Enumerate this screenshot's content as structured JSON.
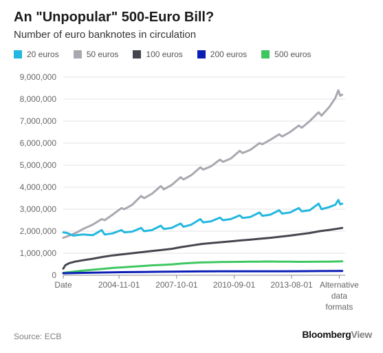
{
  "header": {
    "title": "An \"Unpopular\" 500-Euro Bill?",
    "subtitle": "Number of euro banknotes in circulation"
  },
  "footer": {
    "source": "Source: ECB",
    "brand_main": "Bloomberg",
    "brand_suffix": "View"
  },
  "chart_data": {
    "type": "line",
    "title": "An \"Unpopular\" 500-Euro Bill?",
    "subtitle": "Number of euro banknotes in circulation",
    "xlabel": "",
    "ylabel": "",
    "x_tick_labels": [
      "Date",
      "2004-11-01",
      "2007-10-01",
      "2010-09-01",
      "2013-08-01",
      "Alternative data formats"
    ],
    "x_tick_years": [
      2002.0,
      2004.83,
      2007.75,
      2010.67,
      2013.58,
      2016.0
    ],
    "xlim": [
      2002.0,
      2016.3
    ],
    "ylim": [
      0,
      9000000
    ],
    "y_ticks": [
      0,
      1000000,
      2000000,
      3000000,
      4000000,
      5000000,
      6000000,
      7000000,
      8000000,
      9000000
    ],
    "y_tick_labels": [
      "0",
      "1,000,000",
      "2,000,000",
      "3,000,000",
      "4,000,000",
      "5,000,000",
      "6,000,000",
      "7,000,000",
      "8,000,000",
      "9,000,000"
    ],
    "grid": true,
    "legend_position": "top",
    "series": [
      {
        "name": "20 euros",
        "color": "#22b7e0",
        "points": [
          [
            2002.0,
            1950000
          ],
          [
            2002.2,
            1920000
          ],
          [
            2002.5,
            1800000
          ],
          [
            2003.0,
            1850000
          ],
          [
            2003.5,
            1820000
          ],
          [
            2003.95,
            2050000
          ],
          [
            2004.1,
            1850000
          ],
          [
            2004.5,
            1900000
          ],
          [
            2004.95,
            2050000
          ],
          [
            2005.1,
            1950000
          ],
          [
            2005.5,
            1980000
          ],
          [
            2005.95,
            2150000
          ],
          [
            2006.1,
            2000000
          ],
          [
            2006.5,
            2050000
          ],
          [
            2006.95,
            2250000
          ],
          [
            2007.1,
            2100000
          ],
          [
            2007.5,
            2150000
          ],
          [
            2007.95,
            2350000
          ],
          [
            2008.1,
            2200000
          ],
          [
            2008.5,
            2300000
          ],
          [
            2008.95,
            2550000
          ],
          [
            2009.1,
            2400000
          ],
          [
            2009.5,
            2450000
          ],
          [
            2009.95,
            2620000
          ],
          [
            2010.1,
            2500000
          ],
          [
            2010.5,
            2550000
          ],
          [
            2010.95,
            2720000
          ],
          [
            2011.1,
            2600000
          ],
          [
            2011.5,
            2650000
          ],
          [
            2011.95,
            2850000
          ],
          [
            2012.1,
            2700000
          ],
          [
            2012.5,
            2750000
          ],
          [
            2012.95,
            2950000
          ],
          [
            2013.1,
            2800000
          ],
          [
            2013.5,
            2850000
          ],
          [
            2013.95,
            3050000
          ],
          [
            2014.1,
            2900000
          ],
          [
            2014.5,
            2950000
          ],
          [
            2014.95,
            3250000
          ],
          [
            2015.1,
            3000000
          ],
          [
            2015.5,
            3100000
          ],
          [
            2015.8,
            3200000
          ],
          [
            2015.95,
            3420000
          ],
          [
            2016.05,
            3220000
          ],
          [
            2016.15,
            3250000
          ]
        ]
      },
      {
        "name": "50 euros",
        "color": "#a8a8b0",
        "points": [
          [
            2002.0,
            1700000
          ],
          [
            2002.3,
            1800000
          ],
          [
            2002.7,
            1950000
          ],
          [
            2003.0,
            2100000
          ],
          [
            2003.5,
            2300000
          ],
          [
            2003.95,
            2550000
          ],
          [
            2004.1,
            2500000
          ],
          [
            2004.5,
            2750000
          ],
          [
            2004.95,
            3050000
          ],
          [
            2005.1,
            3000000
          ],
          [
            2005.5,
            3200000
          ],
          [
            2005.95,
            3600000
          ],
          [
            2006.1,
            3500000
          ],
          [
            2006.5,
            3700000
          ],
          [
            2006.95,
            4050000
          ],
          [
            2007.1,
            3900000
          ],
          [
            2007.5,
            4100000
          ],
          [
            2007.95,
            4450000
          ],
          [
            2008.1,
            4350000
          ],
          [
            2008.5,
            4550000
          ],
          [
            2008.95,
            4900000
          ],
          [
            2009.1,
            4800000
          ],
          [
            2009.5,
            4950000
          ],
          [
            2009.95,
            5250000
          ],
          [
            2010.1,
            5150000
          ],
          [
            2010.5,
            5300000
          ],
          [
            2010.95,
            5650000
          ],
          [
            2011.1,
            5550000
          ],
          [
            2011.5,
            5700000
          ],
          [
            2011.95,
            6000000
          ],
          [
            2012.1,
            5950000
          ],
          [
            2012.5,
            6150000
          ],
          [
            2012.95,
            6400000
          ],
          [
            2013.1,
            6300000
          ],
          [
            2013.5,
            6500000
          ],
          [
            2013.95,
            6800000
          ],
          [
            2014.1,
            6700000
          ],
          [
            2014.5,
            7000000
          ],
          [
            2014.95,
            7400000
          ],
          [
            2015.1,
            7250000
          ],
          [
            2015.5,
            7650000
          ],
          [
            2015.8,
            8050000
          ],
          [
            2015.95,
            8400000
          ],
          [
            2016.05,
            8150000
          ],
          [
            2016.15,
            8200000
          ]
        ]
      },
      {
        "name": "100 euros",
        "color": "#45454f",
        "points": [
          [
            2002.0,
            300000
          ],
          [
            2002.1,
            450000
          ],
          [
            2002.3,
            550000
          ],
          [
            2002.6,
            620000
          ],
          [
            2003.0,
            680000
          ],
          [
            2003.5,
            750000
          ],
          [
            2004.0,
            830000
          ],
          [
            2004.5,
            900000
          ],
          [
            2005.0,
            950000
          ],
          [
            2005.5,
            1000000
          ],
          [
            2006.0,
            1050000
          ],
          [
            2006.5,
            1100000
          ],
          [
            2007.0,
            1150000
          ],
          [
            2007.5,
            1200000
          ],
          [
            2008.0,
            1280000
          ],
          [
            2008.5,
            1350000
          ],
          [
            2009.0,
            1420000
          ],
          [
            2009.5,
            1460000
          ],
          [
            2010.0,
            1500000
          ],
          [
            2010.5,
            1540000
          ],
          [
            2011.0,
            1580000
          ],
          [
            2011.5,
            1620000
          ],
          [
            2012.0,
            1660000
          ],
          [
            2012.5,
            1700000
          ],
          [
            2013.0,
            1750000
          ],
          [
            2013.5,
            1800000
          ],
          [
            2014.0,
            1860000
          ],
          [
            2014.5,
            1920000
          ],
          [
            2015.0,
            2000000
          ],
          [
            2015.5,
            2060000
          ],
          [
            2015.95,
            2120000
          ],
          [
            2016.15,
            2150000
          ]
        ]
      },
      {
        "name": "200 euros",
        "color": "#0a1eb5",
        "points": [
          [
            2002.0,
            90000
          ],
          [
            2003.0,
            110000
          ],
          [
            2004.0,
            125000
          ],
          [
            2005.0,
            140000
          ],
          [
            2006.0,
            150000
          ],
          [
            2007.0,
            160000
          ],
          [
            2008.0,
            170000
          ],
          [
            2009.0,
            175000
          ],
          [
            2010.0,
            180000
          ],
          [
            2011.0,
            180000
          ],
          [
            2012.0,
            180000
          ],
          [
            2013.0,
            182000
          ],
          [
            2014.0,
            185000
          ],
          [
            2015.0,
            190000
          ],
          [
            2016.15,
            195000
          ]
        ]
      },
      {
        "name": "500 euros",
        "color": "#3ec760",
        "points": [
          [
            2002.0,
            110000
          ],
          [
            2002.5,
            160000
          ],
          [
            2003.0,
            210000
          ],
          [
            2003.5,
            250000
          ],
          [
            2004.0,
            290000
          ],
          [
            2004.5,
            330000
          ],
          [
            2005.0,
            360000
          ],
          [
            2005.5,
            390000
          ],
          [
            2006.0,
            420000
          ],
          [
            2006.5,
            450000
          ],
          [
            2007.0,
            470000
          ],
          [
            2007.5,
            490000
          ],
          [
            2008.0,
            530000
          ],
          [
            2008.5,
            560000
          ],
          [
            2009.0,
            580000
          ],
          [
            2009.5,
            590000
          ],
          [
            2010.0,
            600000
          ],
          [
            2010.5,
            605000
          ],
          [
            2011.0,
            610000
          ],
          [
            2011.5,
            615000
          ],
          [
            2012.0,
            620000
          ],
          [
            2012.5,
            625000
          ],
          [
            2013.0,
            620000
          ],
          [
            2013.5,
            615000
          ],
          [
            2014.0,
            610000
          ],
          [
            2014.5,
            612000
          ],
          [
            2015.0,
            615000
          ],
          [
            2015.5,
            620000
          ],
          [
            2016.15,
            630000
          ]
        ]
      }
    ]
  }
}
